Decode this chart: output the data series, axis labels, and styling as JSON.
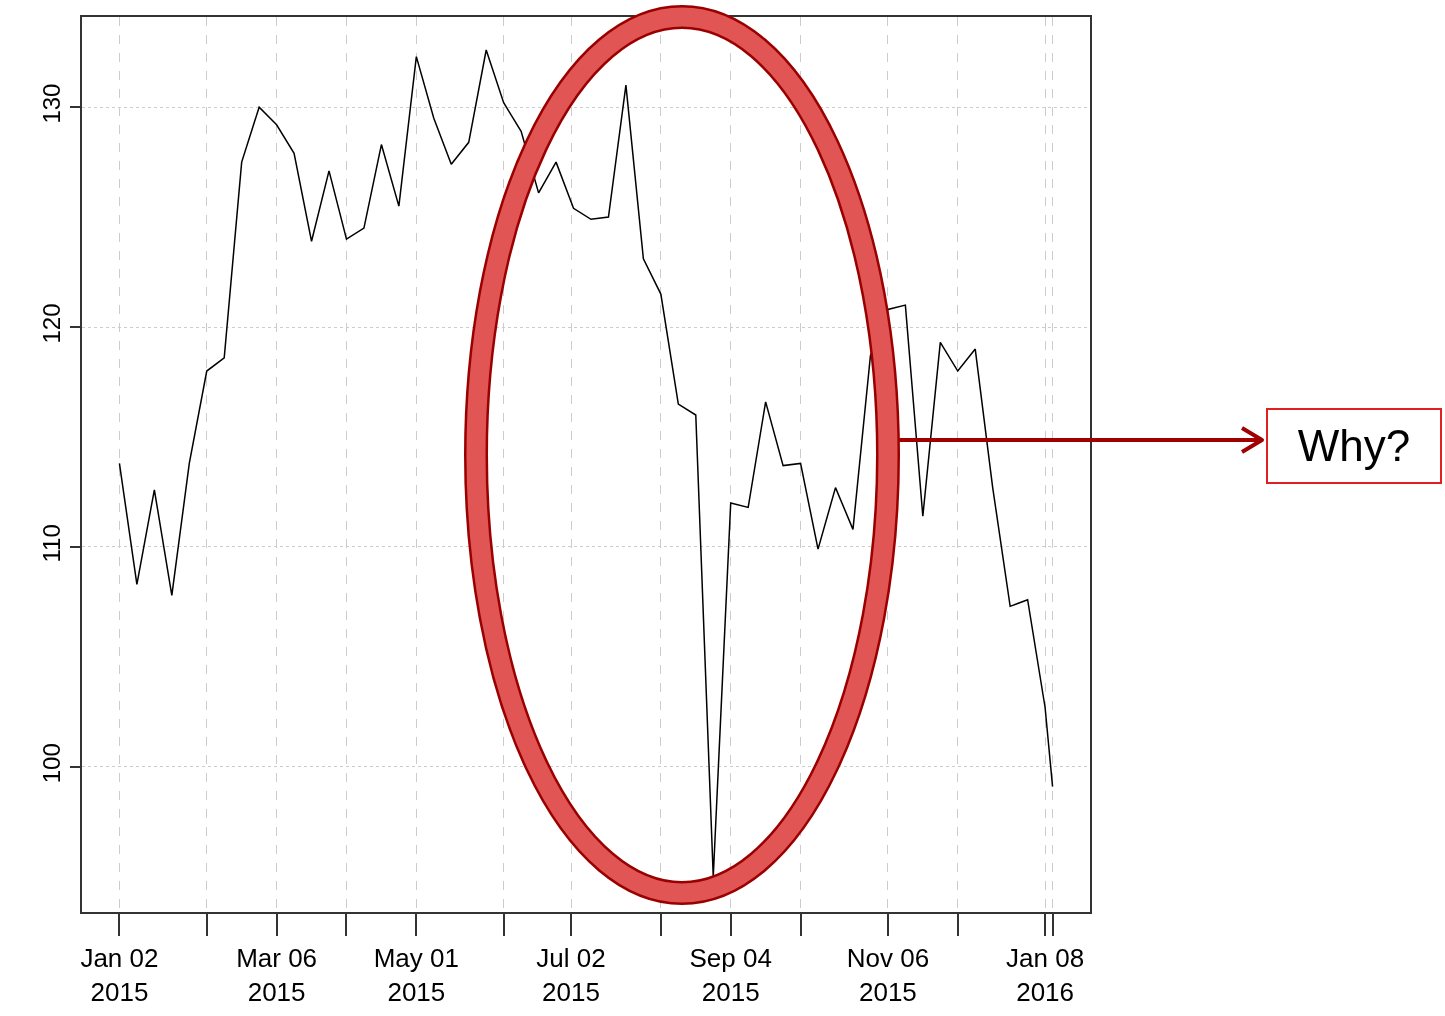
{
  "chart_data": {
    "type": "line",
    "color": "#000000",
    "x": [
      "2015-01-02",
      "2015-01-09",
      "2015-01-16",
      "2015-01-23",
      "2015-01-30",
      "2015-02-06",
      "2015-02-13",
      "2015-02-20",
      "2015-02-27",
      "2015-03-06",
      "2015-03-13",
      "2015-03-20",
      "2015-03-27",
      "2015-04-03",
      "2015-04-10",
      "2015-04-17",
      "2015-04-24",
      "2015-05-01",
      "2015-05-08",
      "2015-05-15",
      "2015-05-22",
      "2015-05-29",
      "2015-06-05",
      "2015-06-12",
      "2015-06-19",
      "2015-06-26",
      "2015-07-03",
      "2015-07-10",
      "2015-07-17",
      "2015-07-24",
      "2015-07-31",
      "2015-08-07",
      "2015-08-14",
      "2015-08-21",
      "2015-08-28",
      "2015-09-04",
      "2015-09-11",
      "2015-09-18",
      "2015-09-25",
      "2015-10-02",
      "2015-10-09",
      "2015-10-16",
      "2015-10-23",
      "2015-10-30",
      "2015-11-06",
      "2015-11-13",
      "2015-11-20",
      "2015-11-27",
      "2015-12-04",
      "2015-12-11",
      "2015-12-18",
      "2015-12-25",
      "2016-01-01",
      "2016-01-08",
      "2016-01-11"
    ],
    "values": [
      113.8,
      108.3,
      112.6,
      107.8,
      113.8,
      118.0,
      118.6,
      127.5,
      130.0,
      129.2,
      127.9,
      123.9,
      127.1,
      124.0,
      124.5,
      128.3,
      125.5,
      132.3,
      129.5,
      127.4,
      128.4,
      132.6,
      130.2,
      128.9,
      126.1,
      127.5,
      125.4,
      124.9,
      125.0,
      131.0,
      123.1,
      121.5,
      116.5,
      116.0,
      95.0,
      112.0,
      111.8,
      116.6,
      113.7,
      113.8,
      109.9,
      112.7,
      110.8,
      118.7,
      120.8,
      121.0,
      111.4,
      119.3,
      118.0,
      119.0,
      112.7,
      107.3,
      107.6,
      102.7,
      99.1
    ],
    "xlim": [
      "2014-12-18",
      "2016-01-26"
    ],
    "xticks": [
      {
        "value": "2015-01-02",
        "label": "Jan 02\n2015"
      },
      {
        "value": "2015-02-06",
        "label": null
      },
      {
        "value": "2015-03-06",
        "label": "Mar 06\n2015"
      },
      {
        "value": "2015-04-03",
        "label": null
      },
      {
        "value": "2015-05-01",
        "label": "May 01\n2015"
      },
      {
        "value": "2015-06-05",
        "label": null
      },
      {
        "value": "2015-07-02",
        "label": "Jul 02\n2015"
      },
      {
        "value": "2015-08-07",
        "label": null
      },
      {
        "value": "2015-09-04",
        "label": "Sep 04\n2015"
      },
      {
        "value": "2015-10-02",
        "label": null
      },
      {
        "value": "2015-11-06",
        "label": "Nov 06\n2015"
      },
      {
        "value": "2015-12-04",
        "label": null
      },
      {
        "value": "2016-01-08",
        "label": "Jan 08\n2016"
      },
      {
        "value": "2016-01-11",
        "label": null
      }
    ],
    "ylim": [
      93.4,
      134.1
    ],
    "yticks": [
      100,
      110,
      120,
      130
    ],
    "grid": true,
    "line_style": "solid",
    "marker": "none",
    "annotations": [
      "Why?"
    ]
  }
}
